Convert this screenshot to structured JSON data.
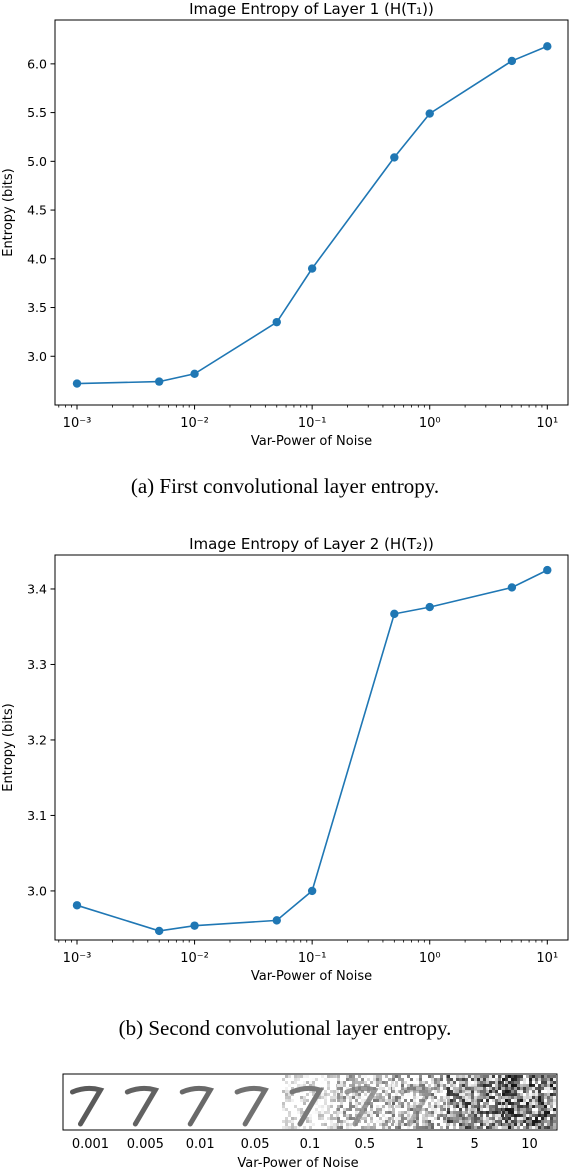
{
  "chart_data": [
    {
      "type": "line",
      "title": "Image Entropy of Layer 1 (H(T₁))",
      "xlabel": "Var-Power of Noise",
      "ylabel": "Entropy (bits)",
      "x_scale": "log",
      "xlim": [
        0.00065,
        15
      ],
      "ylim": [
        2.5,
        6.45
      ],
      "x_ticks": [
        0.001,
        0.01,
        0.1,
        1,
        10
      ],
      "x_tick_labels": [
        "10⁻³",
        "10⁻²",
        "10⁻¹",
        "10⁰",
        "10¹"
      ],
      "y_ticks": [
        3.0,
        3.5,
        4.0,
        4.5,
        5.0,
        5.5,
        6.0
      ],
      "y_tick_labels": [
        "3.0",
        "3.5",
        "4.0",
        "4.5",
        "5.0",
        "5.5",
        "6.0"
      ],
      "grid": false,
      "color": "#1f77b4",
      "x": [
        0.001,
        0.005,
        0.01,
        0.05,
        0.1,
        0.5,
        1,
        5,
        10
      ],
      "y": [
        2.72,
        2.74,
        2.82,
        3.35,
        3.9,
        5.04,
        5.49,
        6.03,
        6.18
      ],
      "caption": "(a) First convolutional layer entropy."
    },
    {
      "type": "line",
      "title": "Image Entropy of Layer 2 (H(T₂))",
      "xlabel": "Var-Power of Noise",
      "ylabel": "Entropy (bits)",
      "x_scale": "log",
      "xlim": [
        0.00065,
        15
      ],
      "ylim": [
        2.935,
        3.445
      ],
      "x_ticks": [
        0.001,
        0.01,
        0.1,
        1,
        10
      ],
      "x_tick_labels": [
        "10⁻³",
        "10⁻²",
        "10⁻¹",
        "10⁰",
        "10¹"
      ],
      "y_ticks": [
        3.0,
        3.1,
        3.2,
        3.3,
        3.4
      ],
      "y_tick_labels": [
        "3.0",
        "3.1",
        "3.2",
        "3.3",
        "3.4"
      ],
      "grid": false,
      "color": "#1f77b4",
      "x": [
        0.001,
        0.005,
        0.01,
        0.05,
        0.1,
        0.5,
        1,
        5,
        10
      ],
      "y": [
        2.981,
        2.947,
        2.954,
        2.961,
        3.0,
        3.367,
        3.376,
        3.402,
        3.425
      ],
      "caption": "(b) Second convolutional layer entropy."
    }
  ],
  "noise_strip": {
    "xlabel": "Var-Power of Noise",
    "labels": [
      "0.001",
      "0.005",
      "0.01",
      "0.05",
      "0.1",
      "0.5",
      "1",
      "5",
      "10"
    ],
    "noise_levels": [
      0.001,
      0.005,
      0.01,
      0.05,
      0.1,
      0.5,
      1,
      5,
      10
    ]
  }
}
